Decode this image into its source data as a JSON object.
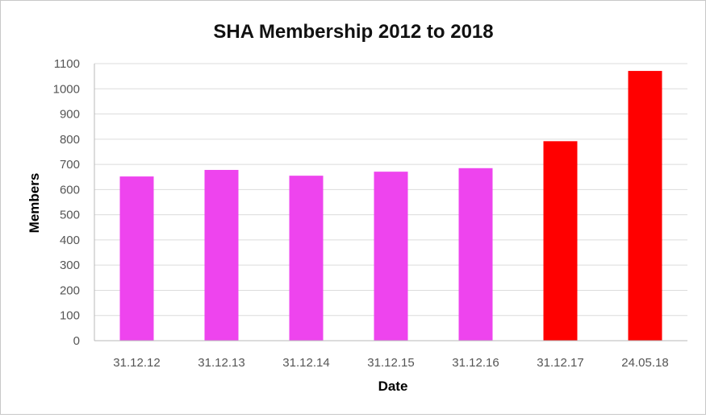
{
  "chart_data": {
    "type": "bar",
    "title": "SHA Membership 2012 to 2018",
    "xlabel": "Date",
    "ylabel": "Members",
    "categories": [
      "31.12.12",
      "31.12.13",
      "31.12.14",
      "31.12.15",
      "31.12.16",
      "31.12.17",
      "24.05.18"
    ],
    "series": [
      {
        "values": [
          652,
          678,
          655,
          671,
          685,
          792,
          1071
        ]
      }
    ],
    "bar_colors": [
      "#ee44ee",
      "#ee44ee",
      "#ee44ee",
      "#ee44ee",
      "#ee44ee",
      "#ff0000",
      "#ff0000"
    ],
    "ylim": [
      0,
      1100
    ],
    "yticks": [
      0,
      100,
      200,
      300,
      400,
      500,
      600,
      700,
      800,
      900,
      1000,
      1100
    ],
    "grid": true,
    "legend": "none"
  }
}
